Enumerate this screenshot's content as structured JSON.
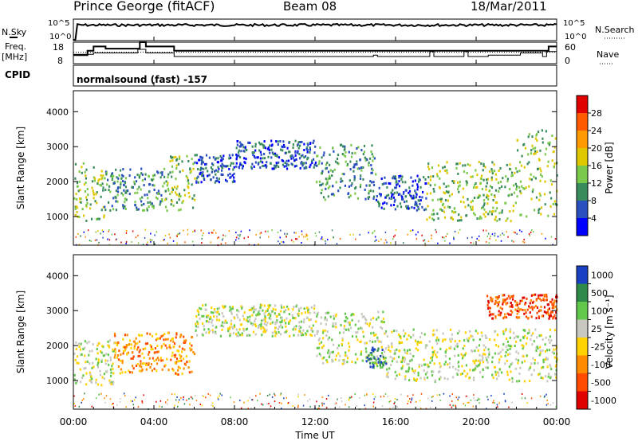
{
  "header": {
    "station": "Prince George (fitACF)",
    "beam": "Beam 08",
    "date": "18/Mar/2011"
  },
  "panel_labels": {
    "nsky": "N.Sky",
    "nsearch": "N.Search",
    "freq": "Freq.",
    "freq_unit": "[MHz]",
    "nave": "Nave",
    "cpid": "CPID",
    "cpid_text": "normalsound (fast) -157"
  },
  "colors": {
    "power_scale": [
      "#0000ff",
      "#2a4fbf",
      "#3a8b5c",
      "#7ac94a",
      "#e0c800",
      "#ff9a00",
      "#ff5a00",
      "#e00000"
    ],
    "velocity_scale": [
      "#1a3fc0",
      "#2f8a4a",
      "#62c84b",
      "#c8c8c0",
      "#ffd200",
      "#ff8c00",
      "#ff4a00",
      "#e00000"
    ]
  },
  "chart_data": [
    {
      "type": "line",
      "name": "noise-panel",
      "left_ticks": [
        "10^5",
        "10^0"
      ],
      "right_ticks": [
        "10^5",
        "10^0"
      ],
      "left_label": "N.Sky",
      "right_label": "N.Search"
    },
    {
      "type": "line",
      "name": "freq-nave-panel",
      "left_ticks": [
        "18",
        "8"
      ],
      "right_ticks": [
        "60",
        "0"
      ],
      "ylim_left": [
        8,
        18
      ],
      "ylim_right": [
        0,
        60
      ],
      "freq_steps": [
        [
          0.0,
          12
        ],
        [
          0.6,
          12
        ],
        [
          0.7,
          14
        ],
        [
          1.0,
          16
        ],
        [
          1.6,
          15
        ],
        [
          3.1,
          15
        ],
        [
          3.3,
          18
        ],
        [
          3.6,
          16
        ],
        [
          4.8,
          16
        ],
        [
          5.0,
          14
        ],
        [
          23.4,
          14
        ],
        [
          23.6,
          16
        ],
        [
          24.0,
          16
        ]
      ],
      "nave_steps": [
        [
          0.0,
          26
        ],
        [
          1.0,
          30
        ],
        [
          3.2,
          40
        ],
        [
          3.6,
          30
        ],
        [
          5.0,
          20
        ],
        [
          14.7,
          20
        ],
        [
          14.9,
          24
        ],
        [
          15.1,
          20
        ],
        [
          17.5,
          20
        ],
        [
          17.7,
          34
        ],
        [
          17.9,
          20
        ],
        [
          19.2,
          20
        ],
        [
          19.4,
          34
        ],
        [
          19.6,
          20
        ],
        [
          20.4,
          20
        ],
        [
          20.6,
          24
        ],
        [
          22.0,
          24
        ],
        [
          22.2,
          30
        ],
        [
          23.3,
          20
        ],
        [
          23.5,
          34
        ],
        [
          24.0,
          34
        ]
      ],
      "nave_reference": 32
    },
    {
      "type": "heatmap",
      "name": "power",
      "ylabel": "Slant Range [km]",
      "yticks": [
        1000,
        2000,
        3000,
        4000
      ],
      "ylim": [
        180,
        4600
      ],
      "xlim_hours": [
        0,
        24
      ],
      "colorbar_label": "Power [dB]",
      "colorbar_ticks": [
        "4",
        "8",
        "12",
        "16",
        "20",
        "24",
        "28"
      ],
      "echo_regions": [
        {
          "t0": 0.0,
          "t1": 1.5,
          "r0": 900,
          "r1": 2600,
          "level": 3
        },
        {
          "t0": 1.5,
          "t1": 4.5,
          "r0": 1200,
          "r1": 2400,
          "level": 2
        },
        {
          "t0": 4.5,
          "t1": 6.0,
          "r0": 1200,
          "r1": 2800,
          "level": 3
        },
        {
          "t0": 6.0,
          "t1": 8.0,
          "r0": 2000,
          "r1": 2800,
          "level": 1
        },
        {
          "t0": 8.0,
          "t1": 12.0,
          "r0": 2400,
          "r1": 3200,
          "level": 1
        },
        {
          "t0": 12.0,
          "t1": 15.0,
          "r0": 1500,
          "r1": 3100,
          "level": 2
        },
        {
          "t0": 15.0,
          "t1": 17.5,
          "r0": 1200,
          "r1": 2200,
          "level": 1
        },
        {
          "t0": 17.5,
          "t1": 22.0,
          "r0": 900,
          "r1": 2600,
          "level": 3
        },
        {
          "t0": 22.0,
          "t1": 24.0,
          "r0": 1000,
          "r1": 3500,
          "level": 3
        }
      ]
    },
    {
      "type": "heatmap",
      "name": "velocity",
      "ylabel": "Slant Range [km]",
      "yticks": [
        1000,
        2000,
        3000,
        4000
      ],
      "ylim": [
        180,
        4600
      ],
      "xlim_hours": [
        0,
        24
      ],
      "colorbar_label": "Velocity [m s⁻¹]",
      "colorbar_ticks": [
        "1000",
        "500",
        "100",
        "25",
        "-25",
        "-100",
        "-500",
        "-1000"
      ],
      "echo_regions": [
        {
          "t0": 0.0,
          "t1": 2.0,
          "r0": 900,
          "r1": 2200,
          "level": 3
        },
        {
          "t0": 2.0,
          "t1": 6.0,
          "r0": 1200,
          "r1": 2400,
          "level": 5
        },
        {
          "t0": 6.0,
          "t1": 12.0,
          "r0": 2300,
          "r1": 3200,
          "level": 3
        },
        {
          "t0": 12.0,
          "t1": 15.5,
          "r0": 1500,
          "r1": 3000,
          "level": 3
        },
        {
          "t0": 14.5,
          "t1": 15.5,
          "r0": 1400,
          "r1": 2000,
          "level": 1
        },
        {
          "t0": 15.5,
          "t1": 24.0,
          "r0": 1000,
          "r1": 2500,
          "level": 3
        },
        {
          "t0": 20.5,
          "t1": 24.0,
          "r0": 2800,
          "r1": 3500,
          "level": 6
        }
      ]
    }
  ],
  "x_axis": {
    "ticks": [
      "00:00",
      "04:00",
      "08:00",
      "12:00",
      "16:00",
      "20:00",
      "00:00"
    ],
    "label": "Time UT"
  }
}
